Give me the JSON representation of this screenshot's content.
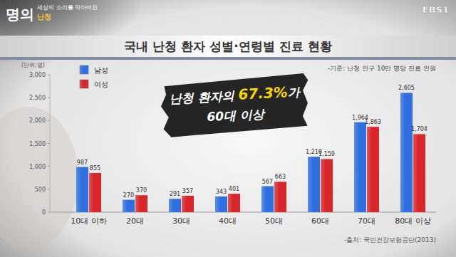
{
  "overlay": {
    "logo": "명의",
    "program_subtitle": "세상의 소리를 막아버린",
    "program_topic": "난청",
    "channel": "EBS1"
  },
  "chart_data": {
    "type": "bar",
    "title": "국내 난청 환자 성별·연령별 진료 현황",
    "subtitle": "-기준: 난청 인구 10만 명당 진료 인원",
    "ylabel": "(단위:명)",
    "source": "-출처: 국민건강보험공단(2013)",
    "annotations": [
      {
        "text": "난청 환자의 67.3%가",
        "highlight": "67.3%"
      },
      {
        "text": "60대 이상"
      }
    ],
    "categories": [
      "10대 이하",
      "20대",
      "30대",
      "40대",
      "50대",
      "60대",
      "70대",
      "80대 이상"
    ],
    "series": [
      {
        "name": "남성",
        "color": "#2f6fe0",
        "values": [
          987,
          270,
          291,
          343,
          567,
          1210,
          1964,
          2605
        ],
        "value_labels": [
          "987",
          "270",
          "291",
          "343",
          "567",
          "1,210",
          "1,964",
          "2,605"
        ]
      },
      {
        "name": "여성",
        "color": "#d8262a",
        "values": [
          855,
          370,
          357,
          401,
          663,
          1159,
          1863,
          1704
        ],
        "value_labels": [
          "855",
          "370",
          "357",
          "401",
          "663",
          "1,159",
          "1,863",
          "1,704"
        ]
      }
    ],
    "ylim": [
      0,
      3000
    ],
    "yticks": [
      0,
      500,
      {
        "value": 1000,
        "label": "1,000"
      },
      {
        "value": 1500,
        "label": "1,500"
      },
      {
        "value": 2000,
        "label": "2,000"
      },
      {
        "value": 2500,
        "label": "2,500"
      },
      {
        "value": 3000,
        "label": "3,000"
      }
    ],
    "grid": false,
    "legend": "upper left",
    "data_labels": true
  }
}
